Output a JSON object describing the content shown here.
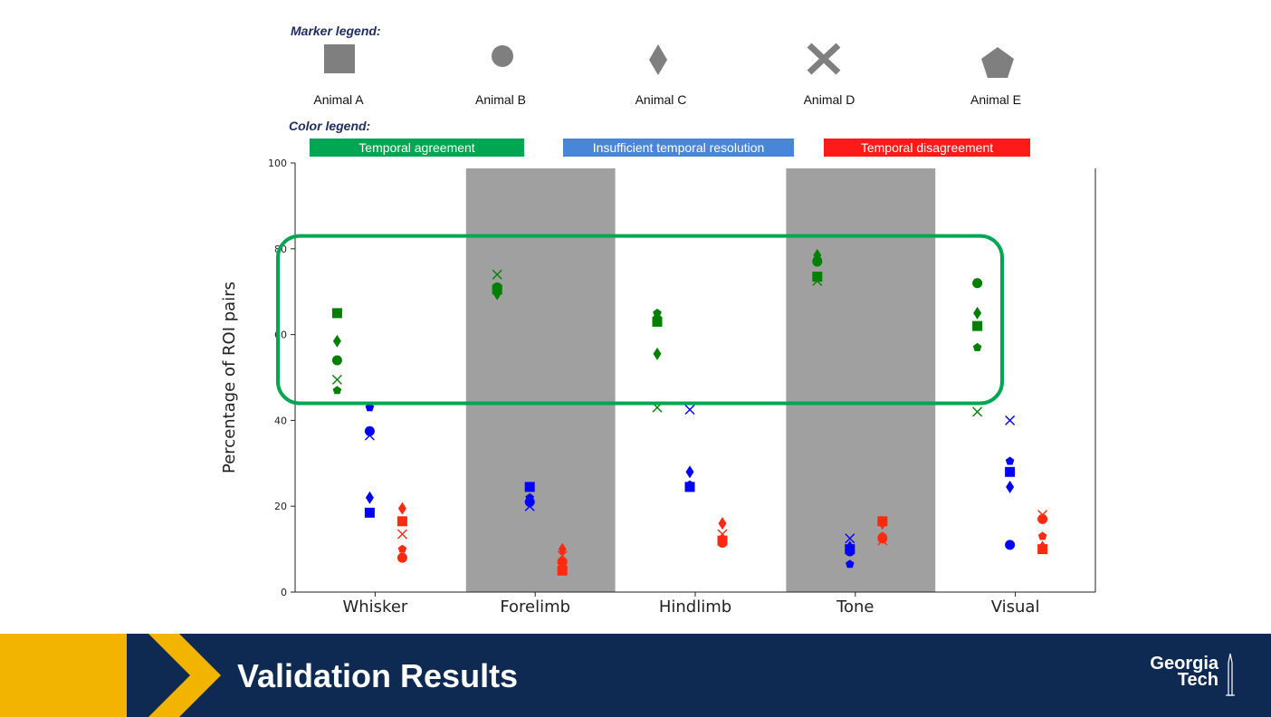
{
  "legend": {
    "marker_title": "Marker legend:",
    "color_title": "Color legend:",
    "animals": [
      "Animal A",
      "Animal B",
      "Animal C",
      "Animal D",
      "Animal E"
    ],
    "marker_shapes": [
      "square",
      "circle",
      "diamond",
      "x",
      "pentagon"
    ],
    "colors": [
      {
        "label": "Temporal agreement",
        "hex": "#00a651"
      },
      {
        "label": "Insufficient temporal resolution",
        "hex": "#4a86d8"
      },
      {
        "label": "Temporal disagreement",
        "hex": "#ff1a1a"
      }
    ],
    "marker_color": "#7f7f7f"
  },
  "footer": {
    "title": "Validation Results",
    "logo_line1": "Georgia",
    "logo_line2": "Tech"
  },
  "chart_data": {
    "type": "scatter",
    "ylabel": "Percentage of ROI pairs",
    "xlabel": "",
    "ylim": [
      0,
      100
    ],
    "yticks": [
      0,
      20,
      40,
      60,
      80,
      100
    ],
    "categories": [
      "Whisker",
      "Forelimb",
      "Hindlimb",
      "Tone",
      "Visual"
    ],
    "shaded_categories": [
      "Forelimb",
      "Tone"
    ],
    "shade_color": "#a0a0a0",
    "highlight_box": {
      "y_range": [
        44,
        83
      ],
      "color": "#00a651"
    },
    "series": [
      {
        "name": "Temporal agreement",
        "color": "#008000",
        "points": {
          "Whisker": {
            "square": 65,
            "circle": 54,
            "diamond": 58.5,
            "x": 49.5,
            "pentagon": 47
          },
          "Forelimb": {
            "square": 70.5,
            "circle": 71,
            "diamond": 69.5,
            "x": 74,
            "pentagon": 70
          },
          "Hindlimb": {
            "square": 63,
            "circle": 63.5,
            "diamond": 55.5,
            "x": 43,
            "pentagon": 65
          },
          "Tone": {
            "square": 73.5,
            "circle": 77,
            "diamond": 78.5,
            "x": 72.5,
            "pentagon": 77.5
          },
          "Visual": {
            "square": 62,
            "circle": 72,
            "diamond": 65,
            "x": 42,
            "pentagon": 57
          }
        }
      },
      {
        "name": "Insufficient temporal resolution",
        "color": "#0000ff",
        "points": {
          "Whisker": {
            "square": 18.5,
            "circle": 37.5,
            "diamond": 22,
            "x": 36.5,
            "pentagon": 43
          },
          "Forelimb": {
            "square": 24.5,
            "circle": 21,
            "diamond": 21.5,
            "x": 20,
            "pentagon": 22
          },
          "Hindlimb": {
            "square": 24.5,
            "circle": 24.5,
            "diamond": 28,
            "x": 42.5,
            "pentagon": 25
          },
          "Tone": {
            "square": 10,
            "circle": 9.5,
            "diamond": 10.5,
            "x": 12.5,
            "pentagon": 6.5
          },
          "Visual": {
            "square": 28,
            "circle": 11,
            "diamond": 24.5,
            "x": 40,
            "pentagon": 30.5
          }
        }
      },
      {
        "name": "Temporal disagreement",
        "color": "#ff2a10",
        "points": {
          "Whisker": {
            "square": 16.5,
            "circle": 8,
            "diamond": 19.5,
            "x": 13.5,
            "pentagon": 10
          },
          "Forelimb": {
            "square": 5,
            "circle": 7,
            "diamond": 10,
            "x": 8.5,
            "pentagon": 6.5
          },
          "Hindlimb": {
            "square": 12,
            "circle": 11.5,
            "diamond": 16,
            "x": 13.5,
            "pentagon": 12.5
          },
          "Tone": {
            "square": 16.5,
            "circle": 12.5,
            "diamond": 16,
            "x": 12,
            "pentagon": 13
          },
          "Visual": {
            "square": 10,
            "circle": 17,
            "diamond": 10.5,
            "x": 18,
            "pentagon": 13
          }
        }
      }
    ]
  }
}
